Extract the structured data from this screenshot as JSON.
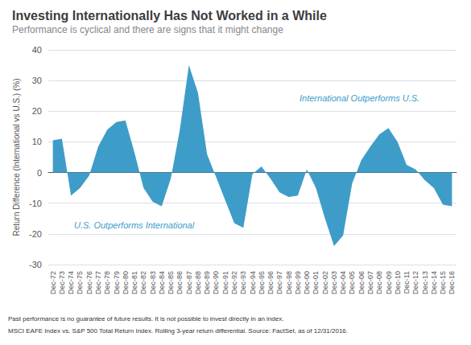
{
  "chart_data": {
    "type": "area",
    "title": "Investing Internationally Has Not Worked in a While",
    "subtitle": "Performance is cyclical and there are signs that it might change",
    "ylabel": "Return Difference (International vs U.S.) (%)",
    "annotations": [
      "International Outperforms U.S.",
      "U.S. Outperforms International"
    ],
    "footnotes": [
      "Past performance is no guarantee of future results. It is not possible to invest directly in an index.",
      "MSCI EAFE Index vs. S&P 500 Total Return Index. Rolling 3-year return differential. Source: FactSet, as of 12/31/2016."
    ],
    "color": "#3d9dc8",
    "categories": [
      "Dec-72",
      "Dec-73",
      "Dec-74",
      "Dec-75",
      "Dec-76",
      "Dec-77",
      "Dec-78",
      "Dec-79",
      "Dec-80",
      "Dec-81",
      "Dec-82",
      "Dec-83",
      "Dec-84",
      "Dec-85",
      "Dec-86",
      "Dec-87",
      "Dec-88",
      "Dec-89",
      "Dec-90",
      "Dec-91",
      "Dec-92",
      "Dec-93",
      "Dec-94",
      "Dec-95",
      "Dec-96",
      "Dec-97",
      "Dec-98",
      "Dec-99",
      "Dec-00",
      "Dec-01",
      "Dec-02",
      "Dec-03",
      "Dec-04",
      "Dec-05",
      "Dec-06",
      "Dec-07",
      "Dec-08",
      "Dec-09",
      "Dec-10",
      "Dec-11",
      "Dec-12",
      "Dec-13",
      "Dec-14",
      "Dec-15",
      "Dec-16"
    ],
    "values": [
      10.5,
      11.0,
      -7.5,
      -5.0,
      -1.0,
      8.5,
      14.0,
      16.5,
      17.0,
      6.5,
      -5.0,
      -9.5,
      -11.0,
      -2.0,
      14.0,
      35.0,
      26.0,
      6.0,
      -1.5,
      -9.0,
      -16.5,
      -18.0,
      -0.5,
      2.0,
      -2.0,
      -6.5,
      -8.0,
      -7.5,
      1.0,
      -5.0,
      -15.0,
      -24.0,
      -20.5,
      -3.5,
      4.0,
      8.5,
      12.5,
      14.5,
      10.0,
      2.5,
      1.0,
      -2.5,
      -5.0,
      -10.5,
      -11.0
    ],
    "ylim": [
      -30,
      40
    ],
    "yticks": [
      -30,
      -20,
      -10,
      0,
      10,
      20,
      30,
      40
    ],
    "grid": true
  }
}
